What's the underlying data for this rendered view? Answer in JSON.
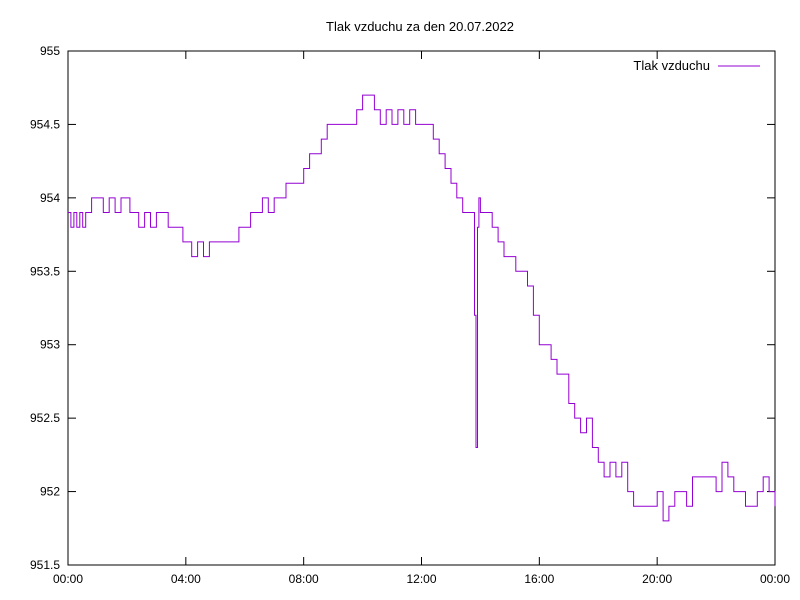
{
  "chart_data": {
    "type": "line",
    "title": "Tlak vzduchu za den 20.07.2022",
    "xlabel": "",
    "ylabel": "",
    "x_unit": "hours",
    "xlim": [
      0,
      24
    ],
    "ylim": [
      951.5,
      955
    ],
    "x_ticks": [
      {
        "value": 0,
        "label": "00:00"
      },
      {
        "value": 4,
        "label": "04:00"
      },
      {
        "value": 8,
        "label": "08:00"
      },
      {
        "value": 12,
        "label": "12:00"
      },
      {
        "value": 16,
        "label": "16:00"
      },
      {
        "value": 20,
        "label": "20:00"
      },
      {
        "value": 24,
        "label": "00:00"
      }
    ],
    "y_ticks": [
      {
        "value": 951.5,
        "label": "951.5"
      },
      {
        "value": 952,
        "label": "952"
      },
      {
        "value": 952.5,
        "label": "952.5"
      },
      {
        "value": 953,
        "label": "953"
      },
      {
        "value": 953.5,
        "label": "953.5"
      },
      {
        "value": 954,
        "label": "954"
      },
      {
        "value": 954.5,
        "label": "954.5"
      },
      {
        "value": 955,
        "label": "955"
      }
    ],
    "grid": false,
    "legend": {
      "position": "top-right"
    },
    "series": [
      {
        "name": "Tlak vzduchu",
        "color": "#9400d3",
        "x": [
          0.0,
          0.1,
          0.2,
          0.3,
          0.4,
          0.5,
          0.6,
          0.7,
          0.8,
          0.9,
          1.0,
          1.2,
          1.4,
          1.6,
          1.8,
          2.0,
          2.1,
          2.2,
          2.4,
          2.6,
          2.8,
          3.0,
          3.2,
          3.4,
          3.6,
          3.8,
          3.9,
          4.0,
          4.2,
          4.4,
          4.6,
          4.8,
          5.0,
          5.2,
          5.4,
          5.6,
          5.8,
          6.0,
          6.2,
          6.4,
          6.6,
          6.8,
          7.0,
          7.2,
          7.4,
          7.6,
          7.8,
          8.0,
          8.2,
          8.4,
          8.6,
          8.8,
          9.0,
          9.2,
          9.4,
          9.6,
          9.8,
          10.0,
          10.2,
          10.4,
          10.6,
          10.8,
          11.0,
          11.2,
          11.4,
          11.6,
          11.8,
          12.0,
          12.2,
          12.4,
          12.6,
          12.8,
          13.0,
          13.2,
          13.4,
          13.6,
          13.8,
          13.85,
          13.9,
          13.95,
          14.0,
          14.2,
          14.4,
          14.6,
          14.8,
          15.0,
          15.2,
          15.4,
          15.6,
          15.8,
          16.0,
          16.2,
          16.4,
          16.6,
          16.8,
          17.0,
          17.2,
          17.4,
          17.6,
          17.8,
          18.0,
          18.2,
          18.4,
          18.6,
          18.8,
          19.0,
          19.2,
          19.4,
          19.6,
          19.8,
          20.0,
          20.2,
          20.4,
          20.5,
          20.6,
          20.8,
          21.0,
          21.2,
          21.4,
          21.6,
          21.8,
          22.0,
          22.2,
          22.4,
          22.6,
          22.8,
          23.0,
          23.2,
          23.4,
          23.6,
          23.8,
          24.0
        ],
        "values": [
          953.9,
          953.8,
          953.9,
          953.8,
          953.9,
          953.8,
          953.9,
          953.9,
          954.0,
          954.0,
          954.0,
          953.9,
          954.0,
          953.9,
          954.0,
          954.0,
          953.9,
          953.9,
          953.8,
          953.9,
          953.8,
          953.9,
          953.9,
          953.8,
          953.8,
          953.8,
          953.7,
          953.7,
          953.6,
          953.7,
          953.6,
          953.7,
          953.7,
          953.7,
          953.7,
          953.7,
          953.8,
          953.8,
          953.9,
          953.9,
          954.0,
          953.9,
          954.0,
          954.0,
          954.1,
          954.1,
          954.1,
          954.2,
          954.3,
          954.3,
          954.4,
          954.5,
          954.5,
          954.5,
          954.5,
          954.5,
          954.6,
          954.7,
          954.7,
          954.6,
          954.5,
          954.6,
          954.5,
          954.6,
          954.5,
          954.6,
          954.5,
          954.5,
          954.5,
          954.4,
          954.3,
          954.2,
          954.1,
          954.0,
          953.9,
          953.9,
          953.2,
          952.3,
          953.8,
          954.0,
          953.9,
          953.9,
          953.8,
          953.7,
          953.6,
          953.6,
          953.5,
          953.5,
          953.4,
          953.2,
          953.0,
          953.0,
          952.9,
          952.8,
          952.8,
          952.6,
          952.5,
          952.4,
          952.5,
          952.3,
          952.2,
          952.1,
          952.2,
          952.1,
          952.2,
          952.0,
          951.9,
          951.9,
          951.9,
          951.9,
          952.0,
          951.8,
          951.9,
          951.9,
          952.0,
          952.0,
          951.9,
          952.1,
          952.1,
          952.1,
          952.1,
          952.0,
          952.2,
          952.1,
          952.0,
          952.0,
          951.9,
          951.9,
          952.0,
          952.1,
          952.0,
          951.9
        ]
      }
    ]
  }
}
